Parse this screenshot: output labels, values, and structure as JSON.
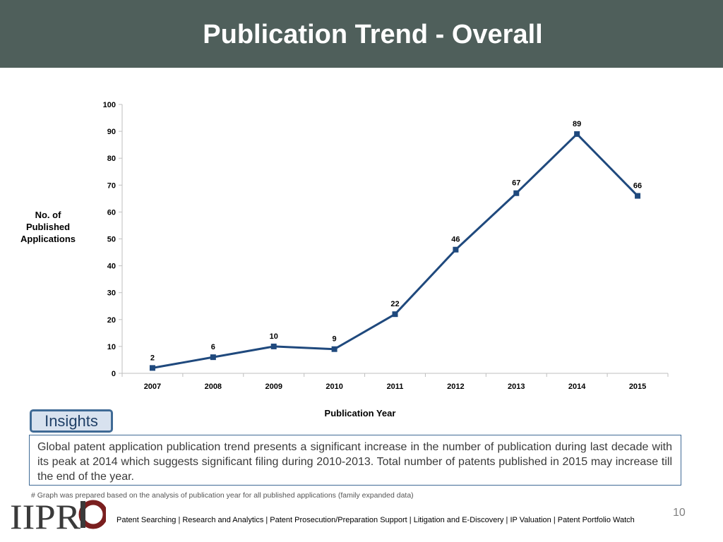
{
  "page": {
    "title": "Publication Trend - Overall",
    "insights_label": "Insights",
    "insights_text": "Global patent application publication trend presents a significant increase in the number of publication during last decade with its peak at 2014 which suggests significant filing during 2010-2013. Total number of patents published in 2015 may increase till the end of the year.",
    "footnote": "# Graph was prepared based on the analysis of publication year for all published applications (family expanded data)",
    "footer": "Patent Searching | Research and Analytics | Patent Prosecution/Preparation Support | Litigation and E-Discovery | IP Valuation |  Patent Portfolio Watch",
    "page_number": "10",
    "logo_text": "IIPRD"
  },
  "chart_data": {
    "type": "line",
    "categories": [
      "2007",
      "2008",
      "2009",
      "2010",
      "2011",
      "2012",
      "2013",
      "2014",
      "2015"
    ],
    "series": [
      {
        "values": [
          2,
          6,
          10,
          9,
          22,
          46,
          67,
          89,
          66
        ]
      }
    ],
    "xlabel": "Publication Year",
    "ylabel": "No. of Published Applications",
    "ylim": [
      0,
      100
    ],
    "yticks": [
      0,
      10,
      20,
      30,
      40,
      50,
      60,
      70,
      80,
      90,
      100
    ],
    "data_labels": true,
    "grid": false,
    "line_color": "#1f497d"
  }
}
